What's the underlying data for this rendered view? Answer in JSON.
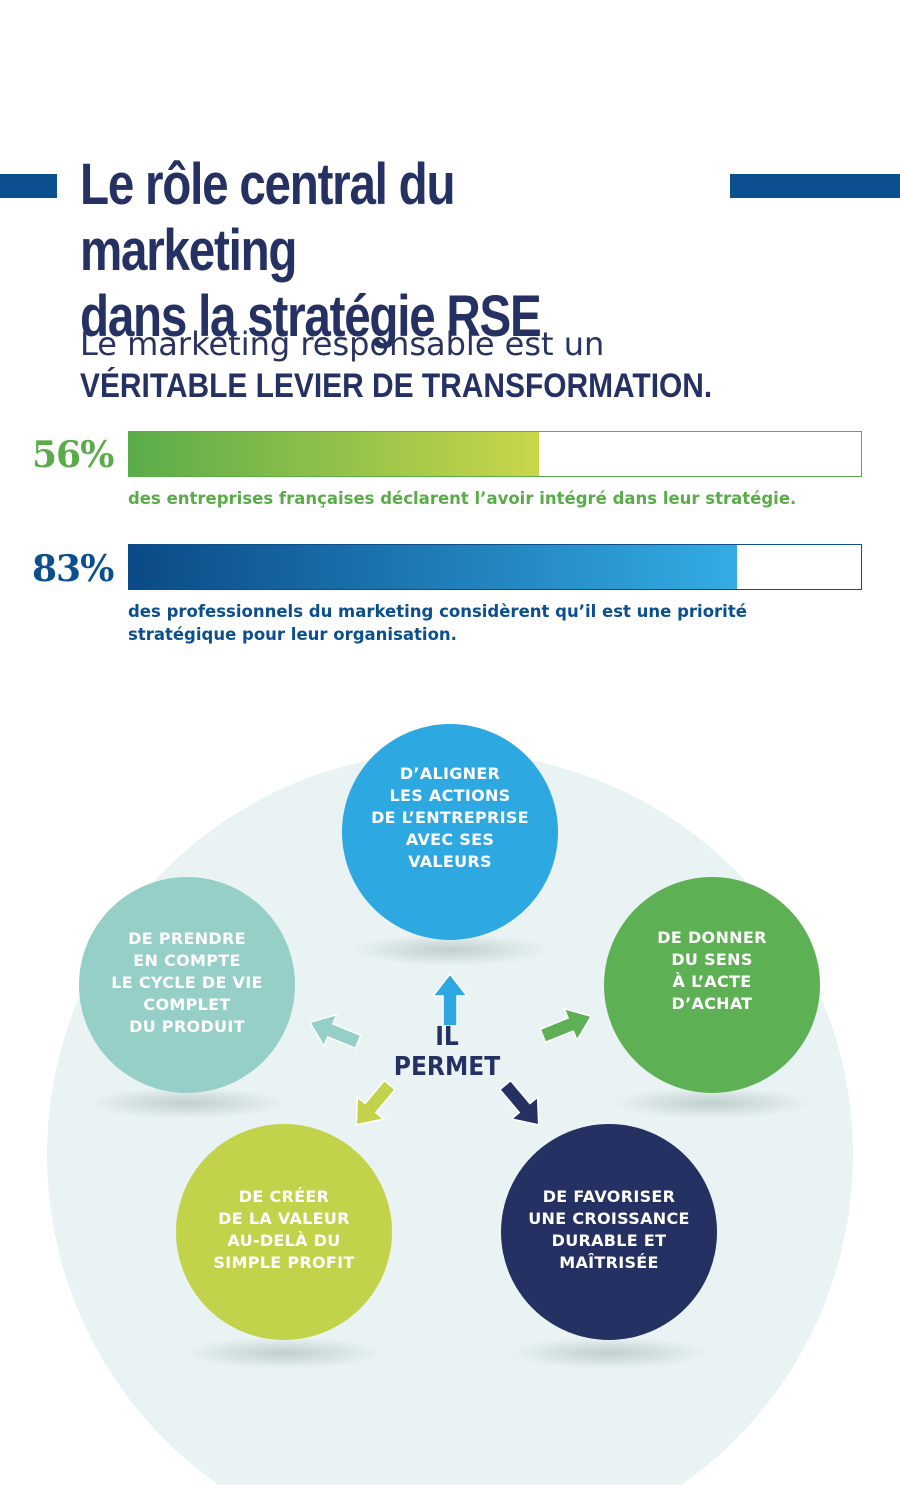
{
  "header": {
    "title_line1": "Le rôle central du marketing",
    "title_line2": "dans la stratégie RSE"
  },
  "intro": {
    "line1": "Le marketing responsable est un",
    "line2": "VÉRITABLE LEVIER DE TRANSFORMATION."
  },
  "stats": [
    {
      "percent_label": "56%",
      "value": 56,
      "description": "des entreprises françaises déclarent l’avoir intégré dans leur stratégie.",
      "color": "#5aac4a",
      "gradient": [
        "#5aac4a",
        "#c9d64a"
      ]
    },
    {
      "percent_label": "83%",
      "value": 83,
      "description_line1": "des professionnels du marketing considèrent qu’il est une priorité",
      "description_line2": "stratégique pour leur organisation.",
      "color": "#0b4f8e",
      "gradient": [
        "#0a4a86",
        "#34ace4"
      ]
    }
  ],
  "diagram": {
    "center_label": "IL PERMET",
    "background_color": "#e9f3f3",
    "items": [
      {
        "lines": [
          "D’ALIGNER",
          "LES ACTIONS",
          "DE L’ENTREPRISE",
          "AVEC SES",
          "VALEURS"
        ],
        "color": "#2ea8e1",
        "arrow_icon": "arrow-up-icon"
      },
      {
        "lines": [
          "DE DONNER",
          "DU SENS",
          "À L’ACTE",
          "D’ACHAT"
        ],
        "color": "#5eb054",
        "arrow_icon": "arrow-right-icon"
      },
      {
        "lines": [
          "DE FAVORISER",
          "UNE CROISSANCE",
          "DURABLE ET",
          "MAÎTRISÉE"
        ],
        "color": "#253063",
        "arrow_icon": "arrow-down-right-icon"
      },
      {
        "lines": [
          "DE CRÉER",
          "DE LA VALEUR",
          "AU-DELÀ DU",
          "SIMPLE PROFIT"
        ],
        "color": "#c3d24b",
        "arrow_icon": "arrow-down-left-icon"
      },
      {
        "lines": [
          "DE PRENDRE",
          "EN COMPTE",
          "LE CYCLE DE VIE",
          "COMPLET",
          "DU PRODUIT"
        ],
        "color": "#96cfc8",
        "arrow_icon": "arrow-left-icon"
      }
    ]
  }
}
